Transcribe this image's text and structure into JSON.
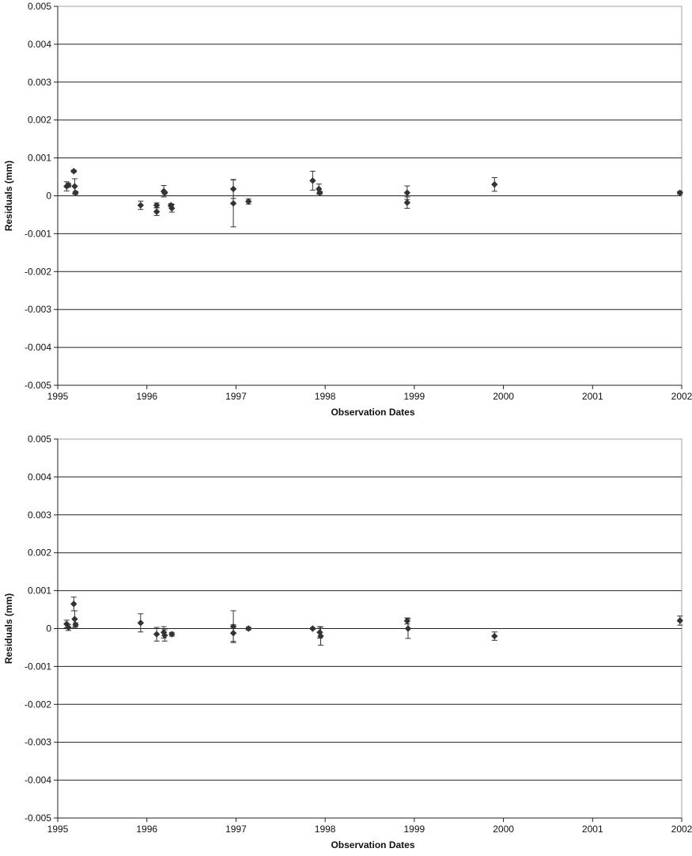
{
  "chart_data": [
    {
      "type": "scatter",
      "xlabel": "Observation Dates",
      "ylabel": "Residuals (mm)",
      "xlim": [
        1995,
        2002
      ],
      "ylim": [
        -0.005,
        0.005
      ],
      "x_ticks": [
        1995,
        1996,
        1997,
        1998,
        1999,
        2000,
        2001,
        2002
      ],
      "y_ticks": [
        0.005,
        0.004,
        0.003,
        0.002,
        0.001,
        0,
        -0.001,
        -0.002,
        -0.003,
        -0.004,
        -0.005
      ],
      "x_tick_labels": [
        "1995",
        "1996",
        "1997",
        "1998",
        "1999",
        "2000",
        "2001",
        "2002"
      ],
      "y_tick_labels": [
        "0.005",
        "0.004",
        "0.003",
        "0.002",
        "0.001",
        "0",
        "-0.001",
        "-0.002",
        "-0.003",
        "-0.004",
        "-0.005"
      ],
      "grid": "horizontal",
      "error_bars": true,
      "points": [
        {
          "x": 1995.1,
          "y": 0.00025,
          "err": 0.00012
        },
        {
          "x": 1995.12,
          "y": 0.00028,
          "err": 5e-05
        },
        {
          "x": 1995.18,
          "y": 0.00065,
          "err": 3e-05
        },
        {
          "x": 1995.19,
          "y": 0.00025,
          "err": 0.0002
        },
        {
          "x": 1995.2,
          "y": 8e-05,
          "err": 4e-05
        },
        {
          "x": 1995.93,
          "y": -0.00025,
          "err": 0.00011
        },
        {
          "x": 1996.11,
          "y": -0.00025,
          "err": 6e-05
        },
        {
          "x": 1996.11,
          "y": -0.00042,
          "err": 0.0001
        },
        {
          "x": 1996.19,
          "y": 0.00012,
          "err": 0.00015
        },
        {
          "x": 1996.2,
          "y": 8e-05,
          "err": 3e-05
        },
        {
          "x": 1996.27,
          "y": -0.00025,
          "err": 4e-05
        },
        {
          "x": 1996.28,
          "y": -0.00033,
          "err": 0.0001
        },
        {
          "x": 1996.97,
          "y": 0.00018,
          "err": 0.00025
        },
        {
          "x": 1996.97,
          "y": -0.0002,
          "err": 0.00062
        },
        {
          "x": 1997.14,
          "y": -0.00015,
          "err": 7e-05
        },
        {
          "x": 1997.86,
          "y": 0.0004,
          "err": 0.00025
        },
        {
          "x": 1997.93,
          "y": 0.00018,
          "err": 0.00013
        },
        {
          "x": 1997.94,
          "y": 8e-05,
          "err": 4e-05
        },
        {
          "x": 1998.92,
          "y": 8e-05,
          "err": 0.00018
        },
        {
          "x": 1998.92,
          "y": -0.00018,
          "err": 0.00015
        },
        {
          "x": 1999.9,
          "y": 0.0003,
          "err": 0.00018
        },
        {
          "x": 2001.98,
          "y": 8e-05,
          "err": 4e-05
        }
      ]
    },
    {
      "type": "scatter",
      "xlabel": "Observation Dates",
      "ylabel": "Residuals (mm)",
      "xlim": [
        1995,
        2002
      ],
      "ylim": [
        -0.005,
        0.005
      ],
      "x_ticks": [
        1995,
        1996,
        1997,
        1998,
        1999,
        2000,
        2001,
        2002
      ],
      "y_ticks": [
        0.005,
        0.004,
        0.003,
        0.002,
        0.001,
        0,
        -0.001,
        -0.002,
        -0.003,
        -0.004,
        -0.005
      ],
      "x_tick_labels": [
        "1995",
        "1996",
        "1997",
        "1998",
        "1999",
        "2000",
        "2001",
        "2002"
      ],
      "y_tick_labels": [
        "0.005",
        "0.004",
        "0.003",
        "0.002",
        "0.001",
        "0",
        "-0.001",
        "-0.002",
        "-0.003",
        "-0.004",
        "-0.005"
      ],
      "grid": "horizontal",
      "error_bars": true,
      "points": [
        {
          "x": 1995.1,
          "y": 0.00012,
          "err": 0.0001
        },
        {
          "x": 1995.12,
          "y": 3e-05,
          "err": 8e-05
        },
        {
          "x": 1995.18,
          "y": 0.00065,
          "err": 0.00018
        },
        {
          "x": 1995.19,
          "y": 0.00025,
          "err": 0.00022
        },
        {
          "x": 1995.2,
          "y": 0.0001,
          "err": 5e-05
        },
        {
          "x": 1995.93,
          "y": 0.00015,
          "err": 0.00024
        },
        {
          "x": 1996.11,
          "y": -0.00015,
          "err": 0.00018
        },
        {
          "x": 1996.19,
          "y": -0.0001,
          "err": 0.00015
        },
        {
          "x": 1996.2,
          "y": -0.00018,
          "err": 0.00015
        },
        {
          "x": 1996.28,
          "y": -0.00015,
          "err": 5e-05
        },
        {
          "x": 1996.97,
          "y": 5e-05,
          "err": 0.00042
        },
        {
          "x": 1996.97,
          "y": -0.00012,
          "err": 0.00022
        },
        {
          "x": 1997.14,
          "y": 0.0,
          "err": 4e-05
        },
        {
          "x": 1997.86,
          "y": 0.0,
          "err": 2e-05
        },
        {
          "x": 1997.94,
          "y": -0.0001,
          "err": 0.00015
        },
        {
          "x": 1997.95,
          "y": -0.0002,
          "err": 0.00024
        },
        {
          "x": 1998.92,
          "y": 0.0002,
          "err": 8e-05
        },
        {
          "x": 1998.93,
          "y": 0.0,
          "err": 0.00026
        },
        {
          "x": 1999.9,
          "y": -0.0002,
          "err": 0.00011
        },
        {
          "x": 2001.98,
          "y": 0.00021,
          "err": 0.00012
        }
      ]
    }
  ]
}
